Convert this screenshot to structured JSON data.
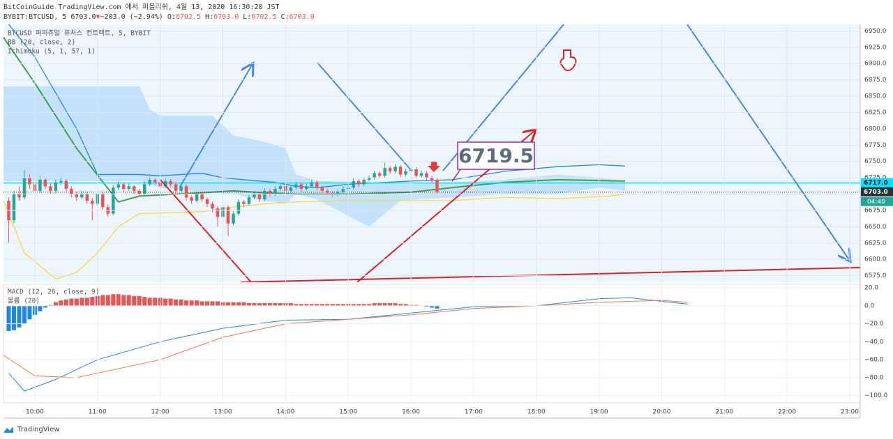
{
  "header": {
    "line1": "BitCoinGuide TradingView.com 에서 퍼블리쉬, 4월 13, 2020 16:30:20 JST",
    "symbol": "BYBIT:BTCUSD, 5",
    "last": "6703.0",
    "arrow": "▼",
    "change": "−203.0 (−2.94%)",
    "o": "O:",
    "ov": "6702.5",
    "h": "H:",
    "hv": "6703.0",
    "l": "L:",
    "lv": "6702.5",
    "c": "C:",
    "cv": "6703.0"
  },
  "footer": "TradingView",
  "chart_data": [
    {
      "type": "candlestick",
      "legend": [
        "BTCUSD 퍼피츄얼 퓨처스 컨트랙트, 5, BYBIT",
        "BB (20, close, 2)",
        "Ichimoku (5, 1, 57, 1)"
      ],
      "xlim": [
        570,
        1390
      ],
      "ylim": [
        6565,
        6960
      ],
      "xticks": [
        {
          "value": 600,
          "label": "10:00"
        },
        {
          "value": 660,
          "label": "11:00"
        },
        {
          "value": 720,
          "label": "12:00"
        },
        {
          "value": 780,
          "label": "13:00"
        },
        {
          "value": 840,
          "label": "14:00"
        },
        {
          "value": 900,
          "label": "15:00"
        },
        {
          "value": 960,
          "label": "16:00"
        },
        {
          "value": 1020,
          "label": "17:00"
        },
        {
          "value": 1080,
          "label": "18:00"
        },
        {
          "value": 1140,
          "label": "19:00"
        },
        {
          "value": 1200,
          "label": "20:00"
        },
        {
          "value": 1260,
          "label": "21:00"
        },
        {
          "value": 1320,
          "label": "22:00"
        },
        {
          "value": 1380,
          "label": "23:00"
        }
      ],
      "yticks": [
        {
          "value": 6575,
          "label": "6575.0"
        },
        {
          "value": 6600,
          "label": "6600.0"
        },
        {
          "value": 6625,
          "label": "6625.0"
        },
        {
          "value": 6650,
          "label": "6650.0"
        },
        {
          "value": 6675,
          "label": "6675.0"
        },
        {
          "value": 6700,
          "label": "6700.0"
        },
        {
          "value": 6725,
          "label": "6725.0"
        },
        {
          "value": 6750,
          "label": "6750.0"
        },
        {
          "value": 6775,
          "label": "6775.0"
        },
        {
          "value": 6800,
          "label": "6800.0"
        },
        {
          "value": 6825,
          "label": "6825.0"
        },
        {
          "value": 6850,
          "label": "6850.0"
        },
        {
          "value": 6875,
          "label": "6875.0"
        },
        {
          "value": 6900,
          "label": "6900.0"
        },
        {
          "value": 6925,
          "label": "6925.0"
        },
        {
          "value": 6950,
          "label": "6950.0"
        }
      ],
      "grid": true,
      "up_color": "#26a69a",
      "down_color": "#ef5350",
      "x": [
        575,
        580,
        585,
        590,
        595,
        600,
        605,
        610,
        615,
        620,
        625,
        630,
        635,
        640,
        645,
        650,
        655,
        660,
        665,
        670,
        675,
        680,
        685,
        690,
        695,
        700,
        705,
        710,
        715,
        720,
        725,
        730,
        735,
        740,
        745,
        750,
        755,
        760,
        765,
        770,
        775,
        780,
        785,
        790,
        795,
        800,
        805,
        810,
        815,
        820,
        825,
        830,
        835,
        840,
        845,
        850,
        855,
        860,
        865,
        870,
        875,
        880,
        885,
        890,
        895,
        900,
        905,
        910,
        915,
        920,
        925,
        930,
        935,
        940,
        945,
        950,
        955,
        960,
        965,
        970,
        975,
        980,
        985
      ],
      "ohlc": [
        [
          6690,
          6695,
          6625,
          6660
        ],
        [
          6660,
          6705,
          6655,
          6700
        ],
        [
          6700,
          6712,
          6690,
          6695
        ],
        [
          6695,
          6737,
          6692,
          6725
        ],
        [
          6725,
          6730,
          6708,
          6715
        ],
        [
          6715,
          6718,
          6700,
          6705
        ],
        [
          6705,
          6728,
          6702,
          6722
        ],
        [
          6722,
          6725,
          6708,
          6712
        ],
        [
          6712,
          6716,
          6700,
          6705
        ],
        [
          6705,
          6722,
          6702,
          6718
        ],
        [
          6718,
          6726,
          6714,
          6720
        ],
        [
          6720,
          6723,
          6704,
          6708
        ],
        [
          6708,
          6712,
          6695,
          6700
        ],
        [
          6700,
          6704,
          6690,
          6695
        ],
        [
          6695,
          6705,
          6692,
          6700
        ],
        [
          6700,
          6703,
          6685,
          6690
        ],
        [
          6690,
          6694,
          6660,
          6685
        ],
        [
          6685,
          6705,
          6682,
          6700
        ],
        [
          6700,
          6703,
          6676,
          6680
        ],
        [
          6680,
          6684,
          6665,
          6670
        ],
        [
          6670,
          6714,
          6668,
          6710
        ],
        [
          6710,
          6720,
          6706,
          6715
        ],
        [
          6715,
          6718,
          6703,
          6708
        ],
        [
          6708,
          6716,
          6705,
          6712
        ],
        [
          6712,
          6714,
          6700,
          6705
        ],
        [
          6705,
          6708,
          6696,
          6700
        ],
        [
          6700,
          6719,
          6698,
          6715
        ],
        [
          6715,
          6727,
          6712,
          6722
        ],
        [
          6722,
          6725,
          6714,
          6718
        ],
        [
          6718,
          6721,
          6708,
          6712
        ],
        [
          6712,
          6724,
          6709,
          6720
        ],
        [
          6720,
          6723,
          6711,
          6715
        ],
        [
          6715,
          6718,
          6700,
          6705
        ],
        [
          6705,
          6716,
          6702,
          6712
        ],
        [
          6712,
          6715,
          6690,
          6695
        ],
        [
          6695,
          6698,
          6685,
          6690
        ],
        [
          6690,
          6704,
          6687,
          6700
        ],
        [
          6700,
          6703,
          6688,
          6692
        ],
        [
          6692,
          6695,
          6680,
          6685
        ],
        [
          6685,
          6688,
          6672,
          6678
        ],
        [
          6678,
          6681,
          6650,
          6665
        ],
        [
          6665,
          6684,
          6662,
          6680
        ],
        [
          6680,
          6683,
          6636,
          6655
        ],
        [
          6655,
          6674,
          6652,
          6670
        ],
        [
          6670,
          6692,
          6667,
          6688
        ],
        [
          6688,
          6691,
          6680,
          6685
        ],
        [
          6685,
          6699,
          6682,
          6695
        ],
        [
          6695,
          6704,
          6692,
          6700
        ],
        [
          6700,
          6703,
          6688,
          6692
        ],
        [
          6692,
          6709,
          6689,
          6705
        ],
        [
          6705,
          6708,
          6696,
          6700
        ],
        [
          6700,
          6712,
          6697,
          6708
        ],
        [
          6708,
          6716,
          6705,
          6712
        ],
        [
          6712,
          6715,
          6701,
          6705
        ],
        [
          6705,
          6714,
          6702,
          6710
        ],
        [
          6710,
          6719,
          6707,
          6715
        ],
        [
          6715,
          6718,
          6704,
          6708
        ],
        [
          6708,
          6716,
          6705,
          6712
        ],
        [
          6712,
          6722,
          6709,
          6718
        ],
        [
          6718,
          6721,
          6706,
          6710
        ],
        [
          6710,
          6713,
          6701,
          6705
        ],
        [
          6705,
          6708,
          6698,
          6702
        ],
        [
          6702,
          6705,
          6696,
          6700
        ],
        [
          6700,
          6707,
          6697,
          6703
        ],
        [
          6703,
          6712,
          6700,
          6708
        ],
        [
          6708,
          6714,
          6705,
          6710
        ],
        [
          6710,
          6724,
          6707,
          6720
        ],
        [
          6720,
          6723,
          6711,
          6715
        ],
        [
          6715,
          6726,
          6712,
          6722
        ],
        [
          6722,
          6729,
          6719,
          6725
        ],
        [
          6725,
          6736,
          6722,
          6732
        ],
        [
          6732,
          6735,
          6724,
          6728
        ],
        [
          6728,
          6748,
          6725,
          6740
        ],
        [
          6740,
          6743,
          6731,
          6735
        ],
        [
          6735,
          6746,
          6732,
          6742
        ],
        [
          6742,
          6745,
          6726,
          6730
        ],
        [
          6730,
          6739,
          6727,
          6735
        ],
        [
          6735,
          6742,
          6732,
          6738
        ],
        [
          6738,
          6741,
          6724,
          6728
        ],
        [
          6728,
          6736,
          6725,
          6732
        ],
        [
          6732,
          6735,
          6721,
          6725
        ],
        [
          6725,
          6728,
          6718,
          6722
        ],
        [
          6722,
          6725,
          6700,
          6703
        ]
      ],
      "cloud": {
        "color": "#90caf9",
        "x": [
          570,
          700,
          710,
          720,
          770,
          790,
          820,
          840,
          850,
          870,
          920,
          950,
          1000,
          1050,
          1100,
          1140,
          1165
        ],
        "upper": [
          6865,
          6865,
          6830,
          6820,
          6820,
          6790,
          6780,
          6770,
          6730,
          6720,
          6718,
          6715,
          6718,
          6722,
          6730,
          6725,
          6720
        ],
        "lower": [
          6720,
          6720,
          6715,
          6710,
          6702,
          6700,
          6690,
          6685,
          6700,
          6692,
          6650,
          6690,
          6695,
          6700,
          6700,
          6710,
          6705
        ]
      },
      "lines": [
        {
          "color": "#1e88e5",
          "x": [
            570,
            600,
            640,
            660,
            700,
            720,
            760,
            780,
            800,
            830,
            850,
            870,
            900,
            960,
            1000,
            1050,
            1100,
            1140,
            1165
          ],
          "values": [
            6970,
            6910,
            6800,
            6730,
            6730,
            6728,
            6732,
            6725,
            6722,
            6718,
            6712,
            6710,
            6715,
            6720,
            6722,
            6735,
            6742,
            6745,
            6743
          ]
        },
        {
          "color": "#43a047",
          "x": [
            570,
            600,
            640,
            680,
            700,
            760,
            790,
            820,
            850,
            900,
            960,
            1000,
            1050,
            1100,
            1165
          ],
          "values": [
            6940,
            6870,
            6770,
            6688,
            6697,
            6702,
            6705,
            6702,
            6700,
            6700,
            6703,
            6710,
            6718,
            6722,
            6720
          ]
        },
        {
          "color": "#fdd835",
          "x": [
            570,
            590,
            620,
            640,
            660,
            680,
            700,
            760,
            790,
            820,
            850,
            900,
            960,
            1000,
            1050,
            1100,
            1150,
            1165
          ],
          "values": [
            6690,
            6610,
            6570,
            6580,
            6610,
            6650,
            6670,
            6673,
            6680,
            6685,
            6688,
            6690,
            6690,
            6690,
            6695,
            6693,
            6697,
            6700
          ]
        }
      ],
      "hlines": [
        {
          "value": 6717,
          "label": "6717.0",
          "color": "#00e5ff"
        },
        {
          "value": 6703,
          "label": "6703.0",
          "color": "#263238"
        }
      ],
      "countdown": "04:40",
      "annotation": {
        "value": 6719.5,
        "label": "6719.5"
      }
    },
    {
      "type": "macd",
      "legend": [
        "MACD (12, 26, close, 9)",
        "볼륨 (20)"
      ],
      "ylim": [
        -108,
        24
      ],
      "yticks": [
        {
          "value": 20,
          "label": "20.0"
        },
        {
          "value": 0,
          "label": "0.0"
        },
        {
          "value": -20,
          "label": "−20.0"
        },
        {
          "value": -40,
          "label": "−40.0"
        },
        {
          "value": -60,
          "label": "−60.0"
        },
        {
          "value": -80,
          "label": "−80.0"
        },
        {
          "value": -100,
          "label": "−100.0"
        }
      ],
      "histogram": [
        -28,
        -27,
        -24,
        -20,
        -15,
        -10,
        -6,
        -2,
        1,
        4,
        6,
        7,
        8,
        8,
        9,
        9,
        10,
        11,
        12,
        12,
        13,
        13,
        12,
        12,
        11,
        11,
        10,
        9,
        9,
        9,
        8,
        8,
        7,
        7,
        6,
        6,
        6,
        5,
        5,
        5,
        5,
        4,
        4,
        4,
        4,
        4,
        3,
        3,
        3,
        3,
        3,
        3,
        3,
        3,
        3,
        2,
        2,
        2,
        2,
        2,
        2,
        2,
        2,
        2,
        2,
        2,
        2,
        2,
        2,
        2,
        3,
        3,
        3,
        3,
        3,
        2,
        2,
        1,
        1,
        0,
        -1,
        -2,
        -3
      ],
      "pos_color": "#ef5350",
      "neg_color": "#1e88e5",
      "lines": [
        {
          "color": "#1e88e5",
          "x": [
            575,
            590,
            620,
            660,
            720,
            780,
            840,
            900,
            960,
            1020,
            1080,
            1140,
            1170,
            1200,
            1225
          ],
          "values": [
            -75,
            -95,
            -82,
            -60,
            -40,
            -25,
            -16,
            -15,
            -8,
            -1,
            0,
            8,
            9,
            5,
            2
          ]
        },
        {
          "color": "#ff7043",
          "x": [
            570,
            600,
            640,
            720,
            780,
            840,
            900,
            960,
            1020,
            1080,
            1140,
            1200,
            1225
          ],
          "values": [
            -55,
            -78,
            -80,
            -60,
            -35,
            -20,
            -15,
            -10,
            -3,
            0,
            4,
            6,
            4
          ]
        }
      ]
    }
  ]
}
